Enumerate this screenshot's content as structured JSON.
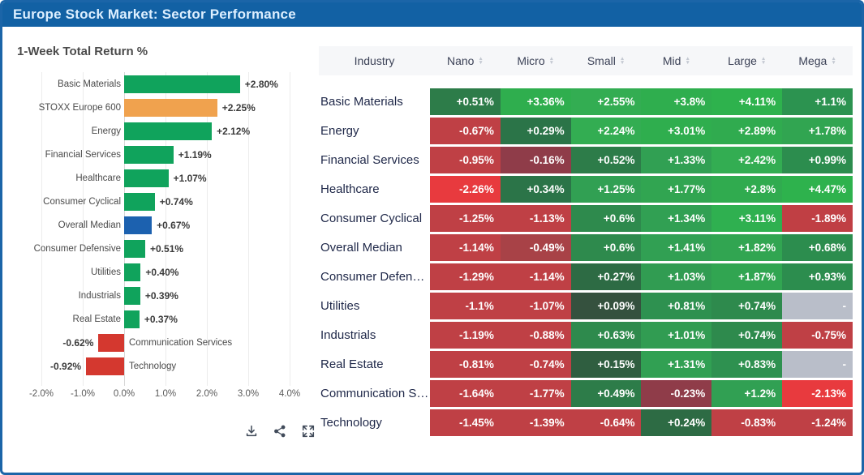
{
  "window": {
    "title": "Europe Stock Market: Sector Performance"
  },
  "colors": {
    "titlebar_bg": "#1261a4",
    "titlebar_text": "#ddefff",
    "frame_border": "#1b65a8",
    "positive_bar": "#10a35c",
    "benchmark_bar": "#f0a24e",
    "median_bar": "#1c61af",
    "negative_bar": "#d4382f",
    "missing_cell": "#b9bec9"
  },
  "chart_data": {
    "type": "bar",
    "orientation": "horizontal",
    "title": "1-Week Total Return %",
    "categories": [
      "Basic Materials",
      "STOXX Europe 600",
      "Energy",
      "Financial Services",
      "Healthcare",
      "Consumer Cyclical",
      "Overall Median",
      "Consumer Defensive",
      "Utilities",
      "Industrials",
      "Real Estate",
      "Communication Services",
      "Technology"
    ],
    "values": [
      2.8,
      2.25,
      2.12,
      1.19,
      1.07,
      0.74,
      0.67,
      0.51,
      0.4,
      0.39,
      0.37,
      -0.62,
      -0.92
    ],
    "value_labels": [
      "+2.80%",
      "+2.25%",
      "+2.12%",
      "+1.19%",
      "+1.07%",
      "+0.74%",
      "+0.67%",
      "+0.51%",
      "+0.40%",
      "+0.39%",
      "+0.37%",
      "-0.62%",
      "-0.92%"
    ],
    "bar_colors": [
      "#10a35c",
      "#f0a24e",
      "#10a35c",
      "#10a35c",
      "#10a35c",
      "#10a35c",
      "#1c61af",
      "#10a35c",
      "#10a35c",
      "#10a35c",
      "#10a35c",
      "#d4382f",
      "#d4382f"
    ],
    "xlabel": "",
    "ylabel": "",
    "xlim": [
      -2.6,
      4.6
    ],
    "grid": true,
    "xticks": [
      "-2.0%",
      "-1.0%",
      "0.0%",
      "1.0%",
      "2.0%",
      "3.0%",
      "4.0%"
    ],
    "xtick_values": [
      -2,
      -1,
      0,
      1,
      2,
      3,
      4
    ]
  },
  "toolbar": {
    "icons": [
      {
        "name": "download-icon"
      },
      {
        "name": "share-icon"
      },
      {
        "name": "expand-icon"
      }
    ]
  },
  "table": {
    "columns": [
      {
        "label": "Industry",
        "sortable": false
      },
      {
        "label": "Nano",
        "sortable": true
      },
      {
        "label": "Micro",
        "sortable": true
      },
      {
        "label": "Small",
        "sortable": true
      },
      {
        "label": "Mid",
        "sortable": true
      },
      {
        "label": "Large",
        "sortable": true
      },
      {
        "label": "Mega",
        "sortable": true
      }
    ],
    "rows": [
      {
        "label": "Basic Materials",
        "cells": [
          {
            "text": "+0.51%",
            "color": "#2d7c49"
          },
          {
            "text": "+3.36%",
            "color": "#2fae4e"
          },
          {
            "text": "+2.55%",
            "color": "#33ad52"
          },
          {
            "text": "+3.8%",
            "color": "#2fae4e"
          },
          {
            "text": "+4.11%",
            "color": "#2eb24d"
          },
          {
            "text": "+1.1%",
            "color": "#2c9350"
          }
        ]
      },
      {
        "label": "Energy",
        "cells": [
          {
            "text": "-0.67%",
            "color": "#bf4045"
          },
          {
            "text": "+0.29%",
            "color": "#2b7448"
          },
          {
            "text": "+2.24%",
            "color": "#33ad52"
          },
          {
            "text": "+3.01%",
            "color": "#2fae4e"
          },
          {
            "text": "+2.89%",
            "color": "#30ab4f"
          },
          {
            "text": "+1.78%",
            "color": "#31a551"
          }
        ]
      },
      {
        "label": "Financial Services",
        "cells": [
          {
            "text": "-0.95%",
            "color": "#bf4045"
          },
          {
            "text": "-0.16%",
            "color": "#8f3c49"
          },
          {
            "text": "+0.52%",
            "color": "#2d7c49"
          },
          {
            "text": "+1.33%",
            "color": "#31a053"
          },
          {
            "text": "+2.42%",
            "color": "#33ad52"
          },
          {
            "text": "+0.99%",
            "color": "#2c8d4e"
          }
        ]
      },
      {
        "label": "Healthcare",
        "cells": [
          {
            "text": "-2.26%",
            "color": "#e83a3e"
          },
          {
            "text": "+0.34%",
            "color": "#2b7448"
          },
          {
            "text": "+1.25%",
            "color": "#31a053"
          },
          {
            "text": "+1.77%",
            "color": "#31a551"
          },
          {
            "text": "+2.8%",
            "color": "#30ab4f"
          },
          {
            "text": "+4.47%",
            "color": "#2eb24d"
          }
        ]
      },
      {
        "label": "Consumer Cyclical",
        "cells": [
          {
            "text": "-1.25%",
            "color": "#bf4045"
          },
          {
            "text": "-1.13%",
            "color": "#bf4045"
          },
          {
            "text": "+0.6%",
            "color": "#2e8a4d"
          },
          {
            "text": "+1.34%",
            "color": "#31a053"
          },
          {
            "text": "+3.11%",
            "color": "#2fb050"
          },
          {
            "text": "-1.89%",
            "color": "#c03f44"
          }
        ]
      },
      {
        "label": "Overall Median",
        "cells": [
          {
            "text": "-1.14%",
            "color": "#bf4045"
          },
          {
            "text": "-0.49%",
            "color": "#a84247"
          },
          {
            "text": "+0.6%",
            "color": "#2e8a4d"
          },
          {
            "text": "+1.41%",
            "color": "#31a053"
          },
          {
            "text": "+1.82%",
            "color": "#31a551"
          },
          {
            "text": "+0.68%",
            "color": "#2c8d4e"
          }
        ]
      },
      {
        "label": "Consumer Defensive",
        "cells": [
          {
            "text": "-1.29%",
            "color": "#bf4045"
          },
          {
            "text": "-1.14%",
            "color": "#bf4045"
          },
          {
            "text": "+0.27%",
            "color": "#2d6b44"
          },
          {
            "text": "+1.03%",
            "color": "#319c52"
          },
          {
            "text": "+1.87%",
            "color": "#31a551"
          },
          {
            "text": "+0.93%",
            "color": "#2c8d4e"
          }
        ]
      },
      {
        "label": "Utilities",
        "cells": [
          {
            "text": "-1.1%",
            "color": "#bf4045"
          },
          {
            "text": "-1.07%",
            "color": "#bf4045"
          },
          {
            "text": "+0.09%",
            "color": "#35513e"
          },
          {
            "text": "+0.81%",
            "color": "#2e9150"
          },
          {
            "text": "+0.74%",
            "color": "#2e8a4d"
          },
          {
            "text": "-",
            "color": "#b9bec9"
          }
        ]
      },
      {
        "label": "Industrials",
        "cells": [
          {
            "text": "-1.19%",
            "color": "#bf4045"
          },
          {
            "text": "-0.88%",
            "color": "#bf4045"
          },
          {
            "text": "+0.63%",
            "color": "#2e8a4d"
          },
          {
            "text": "+1.01%",
            "color": "#319c52"
          },
          {
            "text": "+0.74%",
            "color": "#2e8a4d"
          },
          {
            "text": "-0.75%",
            "color": "#bf4045"
          }
        ]
      },
      {
        "label": "Real Estate",
        "cells": [
          {
            "text": "-0.81%",
            "color": "#bf4045"
          },
          {
            "text": "-0.74%",
            "color": "#bf4045"
          },
          {
            "text": "+0.15%",
            "color": "#2f5e40"
          },
          {
            "text": "+1.31%",
            "color": "#31a053"
          },
          {
            "text": "+0.83%",
            "color": "#2e9150"
          },
          {
            "text": "-",
            "color": "#b9bec9"
          }
        ]
      },
      {
        "label": "Communication Services",
        "cells": [
          {
            "text": "-1.64%",
            "color": "#bf4045"
          },
          {
            "text": "-1.77%",
            "color": "#bf4045"
          },
          {
            "text": "+0.49%",
            "color": "#2d7c49"
          },
          {
            "text": "-0.23%",
            "color": "#8f3c49"
          },
          {
            "text": "+1.2%",
            "color": "#31a053"
          },
          {
            "text": "-2.13%",
            "color": "#e83a3e"
          }
        ]
      },
      {
        "label": "Technology",
        "cells": [
          {
            "text": "-1.45%",
            "color": "#bf4045"
          },
          {
            "text": "-1.39%",
            "color": "#bf4045"
          },
          {
            "text": "-0.64%",
            "color": "#bf4045"
          },
          {
            "text": "+0.24%",
            "color": "#2d6b44"
          },
          {
            "text": "-0.83%",
            "color": "#bf4045"
          },
          {
            "text": "-1.24%",
            "color": "#bf4045"
          }
        ]
      }
    ]
  }
}
